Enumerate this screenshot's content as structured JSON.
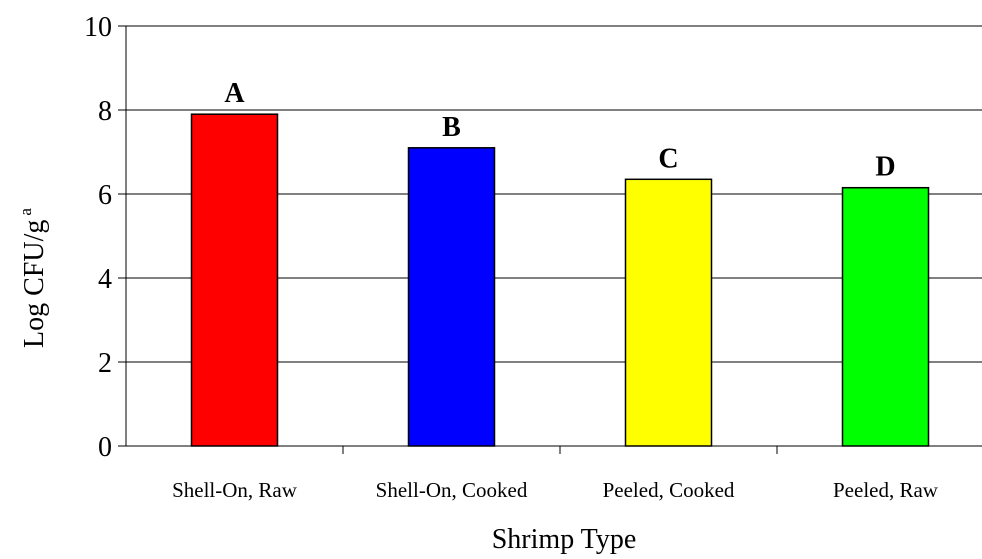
{
  "chart_data": {
    "type": "bar",
    "title": "",
    "xlabel": "Shrimp Type",
    "ylabel": "Log CFU/g",
    "ylabel_superscript": "a",
    "ylim": [
      0,
      10
    ],
    "yticks": [
      "0",
      "2",
      "4",
      "6",
      "8",
      "10"
    ],
    "grid": "horizontal",
    "legend": "none",
    "categories": [
      "Shell-On, Raw",
      "Shell-On, Cooked",
      "Peeled, Cooked",
      "Peeled, Raw"
    ],
    "values": [
      7.9,
      7.1,
      6.35,
      6.15
    ],
    "data_labels": [
      "A",
      "B",
      "C",
      "D"
    ],
    "colors": [
      "#ff0000",
      "#0000ff",
      "#ffff00",
      "#00ff00"
    ],
    "bar_edge_color": "#000000"
  }
}
